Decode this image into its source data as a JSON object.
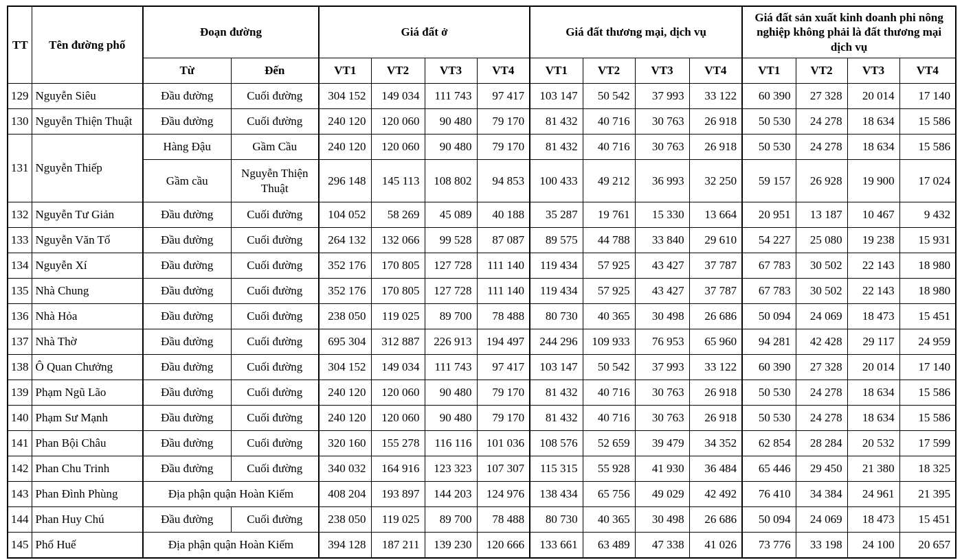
{
  "table": {
    "header": {
      "tt": "TT",
      "street": "Tên đường phố",
      "segment": "Đoạn đường",
      "from": "Từ",
      "to": "Đến",
      "residential": "Giá đất ở",
      "commercial": "Giá đất thương mại, dịch vụ",
      "production": "Giá đất sản xuất kinh doanh phi nông nghiệp không phải là đất thương mại dịch vụ",
      "vt": [
        "VT1",
        "VT2",
        "VT3",
        "VT4"
      ]
    },
    "rows": [
      {
        "tt": "129",
        "street": "Nguyễn Siêu",
        "segments": [
          {
            "from": "Đầu đường",
            "to": "Cuối đường",
            "residential": [
              "304 152",
              "149 034",
              "111 743",
              "97 417"
            ],
            "commercial": [
              "103 147",
              "50 542",
              "37 993",
              "33 122"
            ],
            "production": [
              "60 390",
              "27 328",
              "20 014",
              "17 140"
            ]
          }
        ]
      },
      {
        "tt": "130",
        "street": "Nguyễn Thiện Thuật",
        "segments": [
          {
            "from": "Đầu đường",
            "to": "Cuối đường",
            "residential": [
              "240 120",
              "120 060",
              "90 480",
              "79 170"
            ],
            "commercial": [
              "81 432",
              "40 716",
              "30 763",
              "26 918"
            ],
            "production": [
              "50 530",
              "24 278",
              "18 634",
              "15 586"
            ]
          }
        ]
      },
      {
        "tt": "131",
        "street": "Nguyễn Thiếp",
        "segments": [
          {
            "from": "Hàng Đậu",
            "to": "Gầm Cầu",
            "residential": [
              "240 120",
              "120 060",
              "90 480",
              "79 170"
            ],
            "commercial": [
              "81 432",
              "40 716",
              "30 763",
              "26 918"
            ],
            "production": [
              "50 530",
              "24 278",
              "18 634",
              "15 586"
            ]
          },
          {
            "from": "Gầm cầu",
            "to": "Nguyễn Thiện Thuật",
            "tall": true,
            "residential": [
              "296 148",
              "145 113",
              "108 802",
              "94 853"
            ],
            "commercial": [
              "100 433",
              "49 212",
              "36 993",
              "32 250"
            ],
            "production": [
              "59 157",
              "26 928",
              "19 900",
              "17 024"
            ]
          }
        ]
      },
      {
        "tt": "132",
        "street": "Nguyễn Tư Giản",
        "segments": [
          {
            "from": "Đầu đường",
            "to": "Cuối đường",
            "residential": [
              "104 052",
              "58 269",
              "45 089",
              "40 188"
            ],
            "commercial": [
              "35 287",
              "19 761",
              "15 330",
              "13 664"
            ],
            "production": [
              "20 951",
              "13 187",
              "10 467",
              "9 432"
            ]
          }
        ]
      },
      {
        "tt": "133",
        "street": "Nguyễn Văn Tố",
        "segments": [
          {
            "from": "Đầu đường",
            "to": "Cuối đường",
            "residential": [
              "264 132",
              "132 066",
              "99 528",
              "87 087"
            ],
            "commercial": [
              "89 575",
              "44 788",
              "33 840",
              "29 610"
            ],
            "production": [
              "54 227",
              "25 080",
              "19 238",
              "15 931"
            ]
          }
        ]
      },
      {
        "tt": "134",
        "street": "Nguyễn Xí",
        "segments": [
          {
            "from": "Đầu đường",
            "to": "Cuối đường",
            "residential": [
              "352 176",
              "170 805",
              "127 728",
              "111 140"
            ],
            "commercial": [
              "119 434",
              "57 925",
              "43 427",
              "37 787"
            ],
            "production": [
              "67 783",
              "30 502",
              "22 143",
              "18 980"
            ]
          }
        ]
      },
      {
        "tt": "135",
        "street": "Nhà Chung",
        "segments": [
          {
            "from": "Đầu đường",
            "to": "Cuối đường",
            "residential": [
              "352 176",
              "170 805",
              "127 728",
              "111 140"
            ],
            "commercial": [
              "119 434",
              "57 925",
              "43 427",
              "37 787"
            ],
            "production": [
              "67 783",
              "30 502",
              "22 143",
              "18 980"
            ]
          }
        ]
      },
      {
        "tt": "136",
        "street": "Nhà Hỏa",
        "segments": [
          {
            "from": "Đầu đường",
            "to": "Cuối đường",
            "residential": [
              "238 050",
              "119 025",
              "89 700",
              "78 488"
            ],
            "commercial": [
              "80 730",
              "40 365",
              "30 498",
              "26 686"
            ],
            "production": [
              "50 094",
              "24 069",
              "18 473",
              "15 451"
            ]
          }
        ]
      },
      {
        "tt": "137",
        "street": "Nhà Thờ",
        "segments": [
          {
            "from": "Đầu đường",
            "to": "Cuối đường",
            "residential": [
              "695 304",
              "312 887",
              "226 913",
              "194 497"
            ],
            "commercial": [
              "244 296",
              "109 933",
              "76 953",
              "65 960"
            ],
            "production": [
              "94 281",
              "42 428",
              "29 117",
              "24 959"
            ]
          }
        ]
      },
      {
        "tt": "138",
        "street": "Ô Quan Chưởng",
        "segments": [
          {
            "from": "Đầu đường",
            "to": "Cuối đường",
            "residential": [
              "304 152",
              "149 034",
              "111 743",
              "97 417"
            ],
            "commercial": [
              "103 147",
              "50 542",
              "37 993",
              "33 122"
            ],
            "production": [
              "60 390",
              "27 328",
              "20 014",
              "17 140"
            ]
          }
        ]
      },
      {
        "tt": "139",
        "street": "Phạm Ngũ Lão",
        "segments": [
          {
            "from": "Đầu đường",
            "to": "Cuối đường",
            "residential": [
              "240 120",
              "120 060",
              "90 480",
              "79 170"
            ],
            "commercial": [
              "81 432",
              "40 716",
              "30 763",
              "26 918"
            ],
            "production": [
              "50 530",
              "24 278",
              "18 634",
              "15 586"
            ]
          }
        ]
      },
      {
        "tt": "140",
        "street": "Phạm Sư Mạnh",
        "segments": [
          {
            "from": "Đầu đường",
            "to": "Cuối đường",
            "residential": [
              "240 120",
              "120 060",
              "90 480",
              "79 170"
            ],
            "commercial": [
              "81 432",
              "40 716",
              "30 763",
              "26 918"
            ],
            "production": [
              "50 530",
              "24 278",
              "18 634",
              "15 586"
            ]
          }
        ]
      },
      {
        "tt": "141",
        "street": "Phan Bội Châu",
        "segments": [
          {
            "from": "Đầu đường",
            "to": "Cuối đường",
            "residential": [
              "320 160",
              "155 278",
              "116 116",
              "101 036"
            ],
            "commercial": [
              "108 576",
              "52 659",
              "39 479",
              "34 352"
            ],
            "production": [
              "62 854",
              "28 284",
              "20 532",
              "17 599"
            ]
          }
        ]
      },
      {
        "tt": "142",
        "street": "Phan Chu Trinh",
        "segments": [
          {
            "from": "Đầu đường",
            "to": "Cuối đường",
            "residential": [
              "340 032",
              "164 916",
              "123 323",
              "107 307"
            ],
            "commercial": [
              "115 315",
              "55 928",
              "41 930",
              "36 484"
            ],
            "production": [
              "65 446",
              "29 450",
              "21 380",
              "18 325"
            ]
          }
        ]
      },
      {
        "tt": "143",
        "street": "Phan Đình Phùng",
        "segments": [
          {
            "merged": "Địa phận quận Hoàn Kiếm",
            "residential": [
              "408 204",
              "193 897",
              "144 203",
              "124 976"
            ],
            "commercial": [
              "138 434",
              "65 756",
              "49 029",
              "42 492"
            ],
            "production": [
              "76 410",
              "34 384",
              "24 961",
              "21 395"
            ]
          }
        ]
      },
      {
        "tt": "144",
        "street": "Phan Huy Chú",
        "segments": [
          {
            "from": "Đầu đường",
            "to": "Cuối đường",
            "residential": [
              "238 050",
              "119 025",
              "89 700",
              "78 488"
            ],
            "commercial": [
              "80 730",
              "40 365",
              "30 498",
              "26 686"
            ],
            "production": [
              "50 094",
              "24 069",
              "18 473",
              "15 451"
            ]
          }
        ]
      },
      {
        "tt": "145",
        "street": "Phố Huế",
        "segments": [
          {
            "merged": "Địa phận quận Hoàn Kiếm",
            "residential": [
              "394 128",
              "187 211",
              "139 230",
              "120 666"
            ],
            "commercial": [
              "133 661",
              "63 489",
              "47 338",
              "41 026"
            ],
            "production": [
              "73 776",
              "33 198",
              "24 100",
              "20 657"
            ]
          }
        ]
      }
    ]
  }
}
